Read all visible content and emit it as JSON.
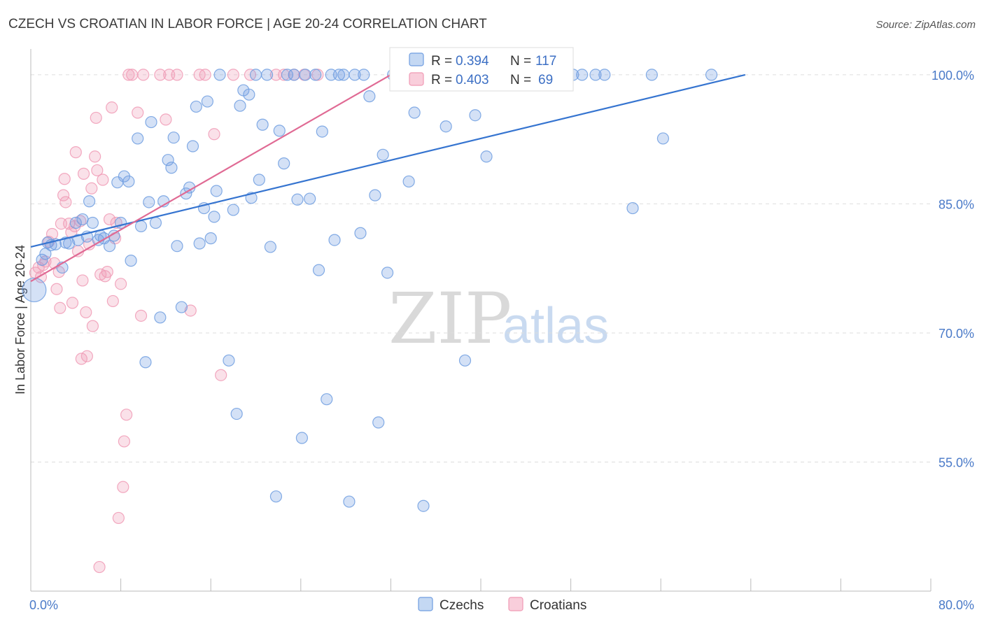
{
  "chart_data": {
    "type": "scatter",
    "title": "CZECH VS CROATIAN IN LABOR FORCE | AGE 20-24 CORRELATION CHART",
    "source": "Source: ZipAtlas.com",
    "ylabel": "In Labor Force | Age 20-24",
    "xlim": [
      0,
      80
    ],
    "ylim": [
      40,
      103
    ],
    "x_tick_labels": [
      {
        "value": 0,
        "label": "0.0%"
      },
      {
        "value": 80,
        "label": "80.0%"
      }
    ],
    "y_tick_labels": [
      {
        "value": 100,
        "label": "100.0%"
      },
      {
        "value": 85,
        "label": "85.0%"
      },
      {
        "value": 70,
        "label": "70.0%"
      },
      {
        "value": 55,
        "label": "55.0%"
      }
    ],
    "colors": {
      "czechs": "#6f9de0",
      "croatians": "#f09ab5",
      "czechs_line": "#3574d0",
      "croatians_line": "#e06a94",
      "grid": "#dddddd"
    },
    "legend": {
      "r_label": "R =",
      "n_label": "N =",
      "czechs": {
        "r": "0.394",
        "n": "117"
      },
      "croatians": {
        "r": "0.403",
        "n": "69"
      }
    },
    "bottom_legend": [
      "Czechs",
      "Croatians"
    ],
    "watermark": {
      "zip": "ZIP",
      "atlas": "atlas"
    },
    "series": [
      {
        "name": "Czechs",
        "trend": {
          "x0": 0,
          "y0": 80,
          "x1": 63.5,
          "y1": 100
        },
        "points": [
          [
            0.3,
            75.0
          ],
          [
            1.0,
            78.5
          ],
          [
            1.3,
            79.2
          ],
          [
            1.5,
            80.5
          ],
          [
            1.8,
            80.2
          ],
          [
            2.2,
            80.3
          ],
          [
            2.8,
            77.6
          ],
          [
            3.1,
            80.5
          ],
          [
            3.4,
            80.4
          ],
          [
            4.0,
            82.8
          ],
          [
            4.2,
            80.8
          ],
          [
            4.6,
            83.2
          ],
          [
            5.0,
            81.2
          ],
          [
            5.2,
            85.3
          ],
          [
            5.5,
            82.8
          ],
          [
            6.0,
            80.8
          ],
          [
            6.2,
            81.3
          ],
          [
            6.5,
            81.0
          ],
          [
            7.0,
            80.1
          ],
          [
            7.4,
            81.3
          ],
          [
            7.7,
            87.5
          ],
          [
            8.0,
            82.8
          ],
          [
            8.3,
            88.2
          ],
          [
            8.7,
            87.6
          ],
          [
            8.9,
            78.4
          ],
          [
            9.5,
            92.6
          ],
          [
            9.8,
            82.4
          ],
          [
            10.2,
            66.6
          ],
          [
            10.5,
            85.2
          ],
          [
            10.7,
            94.5
          ],
          [
            11.1,
            82.8
          ],
          [
            11.5,
            71.8
          ],
          [
            11.8,
            85.3
          ],
          [
            12.2,
            90.1
          ],
          [
            12.5,
            89.2
          ],
          [
            12.7,
            92.7
          ],
          [
            13.0,
            80.1
          ],
          [
            13.4,
            73.0
          ],
          [
            13.8,
            86.2
          ],
          [
            14.1,
            86.9
          ],
          [
            14.4,
            91.7
          ],
          [
            14.7,
            96.3
          ],
          [
            15.0,
            80.4
          ],
          [
            15.4,
            84.5
          ],
          [
            15.7,
            96.9
          ],
          [
            16.0,
            81.0
          ],
          [
            16.3,
            83.5
          ],
          [
            16.5,
            86.5
          ],
          [
            16.8,
            100
          ],
          [
            17.6,
            66.8
          ],
          [
            18.0,
            84.3
          ],
          [
            18.3,
            60.6
          ],
          [
            18.6,
            96.4
          ],
          [
            18.9,
            98.2
          ],
          [
            19.4,
            97.7
          ],
          [
            19.6,
            85.7
          ],
          [
            20.0,
            100
          ],
          [
            20.3,
            87.8
          ],
          [
            20.6,
            94.2
          ],
          [
            21.0,
            100
          ],
          [
            21.3,
            80.0
          ],
          [
            21.8,
            51.0
          ],
          [
            22.1,
            93.5
          ],
          [
            22.5,
            89.7
          ],
          [
            22.8,
            100
          ],
          [
            23.4,
            100
          ],
          [
            23.7,
            85.5
          ],
          [
            24.1,
            57.8
          ],
          [
            24.4,
            100
          ],
          [
            24.8,
            85.6
          ],
          [
            25.3,
            100
          ],
          [
            25.6,
            77.3
          ],
          [
            25.9,
            93.4
          ],
          [
            26.3,
            62.3
          ],
          [
            26.7,
            100
          ],
          [
            27.0,
            80.8
          ],
          [
            27.4,
            100
          ],
          [
            27.8,
            100
          ],
          [
            28.3,
            50.4
          ],
          [
            28.8,
            100
          ],
          [
            29.3,
            81.6
          ],
          [
            29.6,
            100
          ],
          [
            30.1,
            97.5
          ],
          [
            30.6,
            86.0
          ],
          [
            30.9,
            59.6
          ],
          [
            31.3,
            90.7
          ],
          [
            31.7,
            77.0
          ],
          [
            32.2,
            100
          ],
          [
            32.6,
            100
          ],
          [
            33.2,
            100
          ],
          [
            33.6,
            87.6
          ],
          [
            34.1,
            95.6
          ],
          [
            34.5,
            100
          ],
          [
            34.9,
            49.9
          ],
          [
            35.3,
            100
          ],
          [
            36.1,
            100
          ],
          [
            36.9,
            94.0
          ],
          [
            37.8,
            100
          ],
          [
            38.6,
            66.8
          ],
          [
            39.5,
            95.3
          ],
          [
            40.5,
            90.5
          ],
          [
            41.3,
            100
          ],
          [
            42.2,
            100
          ],
          [
            43.1,
            100
          ],
          [
            44.0,
            100
          ],
          [
            45.0,
            100
          ],
          [
            46.0,
            100
          ],
          [
            46.9,
            100
          ],
          [
            47.6,
            100
          ],
          [
            48.2,
            100
          ],
          [
            49.0,
            100
          ],
          [
            50.2,
            100
          ],
          [
            51.0,
            100
          ],
          [
            53.5,
            84.5
          ],
          [
            55.2,
            100
          ],
          [
            56.2,
            92.6
          ],
          [
            60.5,
            100
          ]
        ]
      },
      {
        "name": "Croatians",
        "trend": {
          "x0": 0,
          "y0": 76,
          "x1": 32,
          "y1": 100
        },
        "points": [
          [
            0.4,
            77.0
          ],
          [
            0.7,
            77.6
          ],
          [
            0.9,
            76.5
          ],
          [
            1.1,
            77.9
          ],
          [
            1.3,
            78.3
          ],
          [
            1.6,
            80.6
          ],
          [
            1.9,
            81.5
          ],
          [
            2.1,
            78.1
          ],
          [
            2.3,
            75.1
          ],
          [
            2.5,
            77.1
          ],
          [
            2.6,
            72.9
          ],
          [
            2.7,
            82.7
          ],
          [
            2.9,
            86.0
          ],
          [
            3.0,
            87.9
          ],
          [
            3.1,
            85.2
          ],
          [
            3.4,
            82.7
          ],
          [
            3.6,
            81.7
          ],
          [
            3.7,
            73.5
          ],
          [
            3.9,
            82.4
          ],
          [
            4.0,
            91.0
          ],
          [
            4.2,
            79.5
          ],
          [
            4.4,
            83.0
          ],
          [
            4.5,
            67.0
          ],
          [
            4.6,
            76.1
          ],
          [
            4.7,
            88.5
          ],
          [
            4.9,
            72.4
          ],
          [
            5.0,
            67.3
          ],
          [
            5.2,
            80.3
          ],
          [
            5.4,
            86.8
          ],
          [
            5.5,
            70.8
          ],
          [
            5.7,
            90.5
          ],
          [
            5.8,
            95.0
          ],
          [
            5.9,
            88.9
          ],
          [
            6.1,
            42.8
          ],
          [
            6.2,
            76.8
          ],
          [
            6.4,
            87.8
          ],
          [
            6.6,
            76.6
          ],
          [
            6.8,
            77.1
          ],
          [
            7.0,
            83.2
          ],
          [
            7.2,
            96.2
          ],
          [
            7.3,
            73.7
          ],
          [
            7.5,
            81.0
          ],
          [
            7.6,
            82.8
          ],
          [
            7.8,
            48.5
          ],
          [
            8.0,
            75.7
          ],
          [
            8.2,
            52.1
          ],
          [
            8.3,
            57.4
          ],
          [
            8.5,
            60.5
          ],
          [
            8.7,
            100
          ],
          [
            9.0,
            100
          ],
          [
            9.5,
            95.6
          ],
          [
            9.8,
            72.0
          ],
          [
            10.0,
            100
          ],
          [
            11.5,
            100
          ],
          [
            12.0,
            94.8
          ],
          [
            12.3,
            100
          ],
          [
            13.0,
            100
          ],
          [
            14.2,
            72.6
          ],
          [
            15.0,
            100
          ],
          [
            15.5,
            100
          ],
          [
            16.3,
            93.1
          ],
          [
            16.9,
            65.1
          ],
          [
            18.0,
            100
          ],
          [
            19.5,
            100
          ],
          [
            21.8,
            100
          ],
          [
            22.5,
            100
          ],
          [
            23.4,
            100
          ],
          [
            24.3,
            100
          ],
          [
            25.5,
            100
          ]
        ]
      }
    ]
  }
}
